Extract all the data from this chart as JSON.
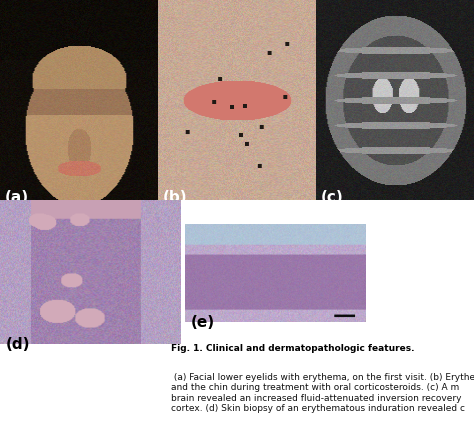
{
  "panels": [
    "(a)",
    "(b)",
    "(c)",
    "(d)",
    "(e)"
  ],
  "bg_color": "#ffffff",
  "label_color_white": "#ffffff",
  "label_color_black": "#000000",
  "label_fontsize": 11,
  "caption_fontsize": 6.5,
  "fig_width": 4.74,
  "fig_height": 4.41,
  "dpi": 100,
  "caption_bold": "Fig. 1. Clinical and dermatopathologic features.",
  "caption_normal": " (a) Facial lower eyelids with erythema, on the first visit. (b) Erythematou\nand the chin during treatment with oral corticosteroids. (c) A m\nbrain revealed an increased fluid-attenuated inversion recovery\ncortex. (d) Skin biopsy of an erythematous induration revealed c"
}
